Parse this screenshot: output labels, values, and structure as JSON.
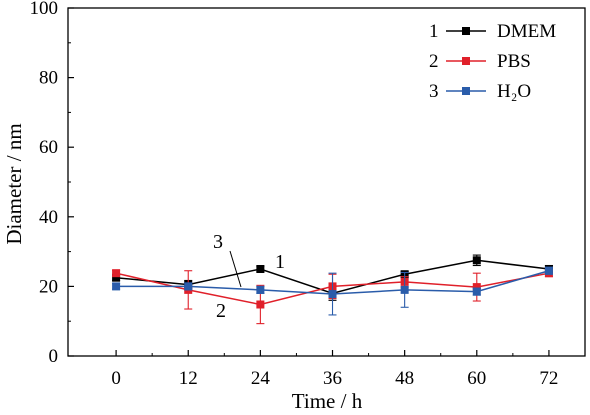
{
  "chart_data": {
    "type": "line",
    "title": "",
    "xlabel": "Time / h",
    "ylabel": "Diameter / nm",
    "xlim": [
      -8,
      78
    ],
    "ylim": [
      0,
      100
    ],
    "x_ticks": [
      0,
      12,
      24,
      36,
      48,
      60,
      72
    ],
    "y_ticks": [
      0,
      20,
      40,
      60,
      80,
      100
    ],
    "x_tick_labels": [
      "0",
      "12",
      "24",
      "36",
      "48",
      "60",
      "72"
    ],
    "y_tick_labels": [
      "0",
      "20",
      "40",
      "60",
      "80",
      "100"
    ],
    "grid": false,
    "legend_position": "top-right",
    "x": [
      0,
      12,
      24,
      36,
      48,
      60,
      72
    ],
    "series": [
      {
        "number": "1",
        "name": "DMEM",
        "color": "#000000",
        "marker": "square",
        "values": [
          22.5,
          20.5,
          25.0,
          18.0,
          23.5,
          27.5,
          25.0
        ],
        "errors": [
          0.8,
          1.2,
          0.8,
          2.0,
          0.8,
          1.5,
          1.0
        ]
      },
      {
        "number": "2",
        "name": "PBS",
        "color": "#e0202a",
        "marker": "square",
        "values": [
          23.8,
          19.0,
          14.8,
          20.0,
          21.3,
          19.8,
          23.8
        ],
        "errors": [
          0.8,
          5.5,
          5.5,
          3.5,
          1.5,
          4.0,
          1.0
        ]
      },
      {
        "number": "3",
        "name": "H₂O",
        "color": "#2a5caa",
        "marker": "square",
        "values": [
          20.0,
          20.0,
          19.0,
          17.8,
          19.0,
          18.5,
          24.5
        ],
        "errors": [
          0.8,
          1.0,
          1.0,
          6.0,
          5.0,
          1.0,
          1.0
        ]
      }
    ],
    "annotations": [
      "3",
      "1",
      "2"
    ]
  }
}
